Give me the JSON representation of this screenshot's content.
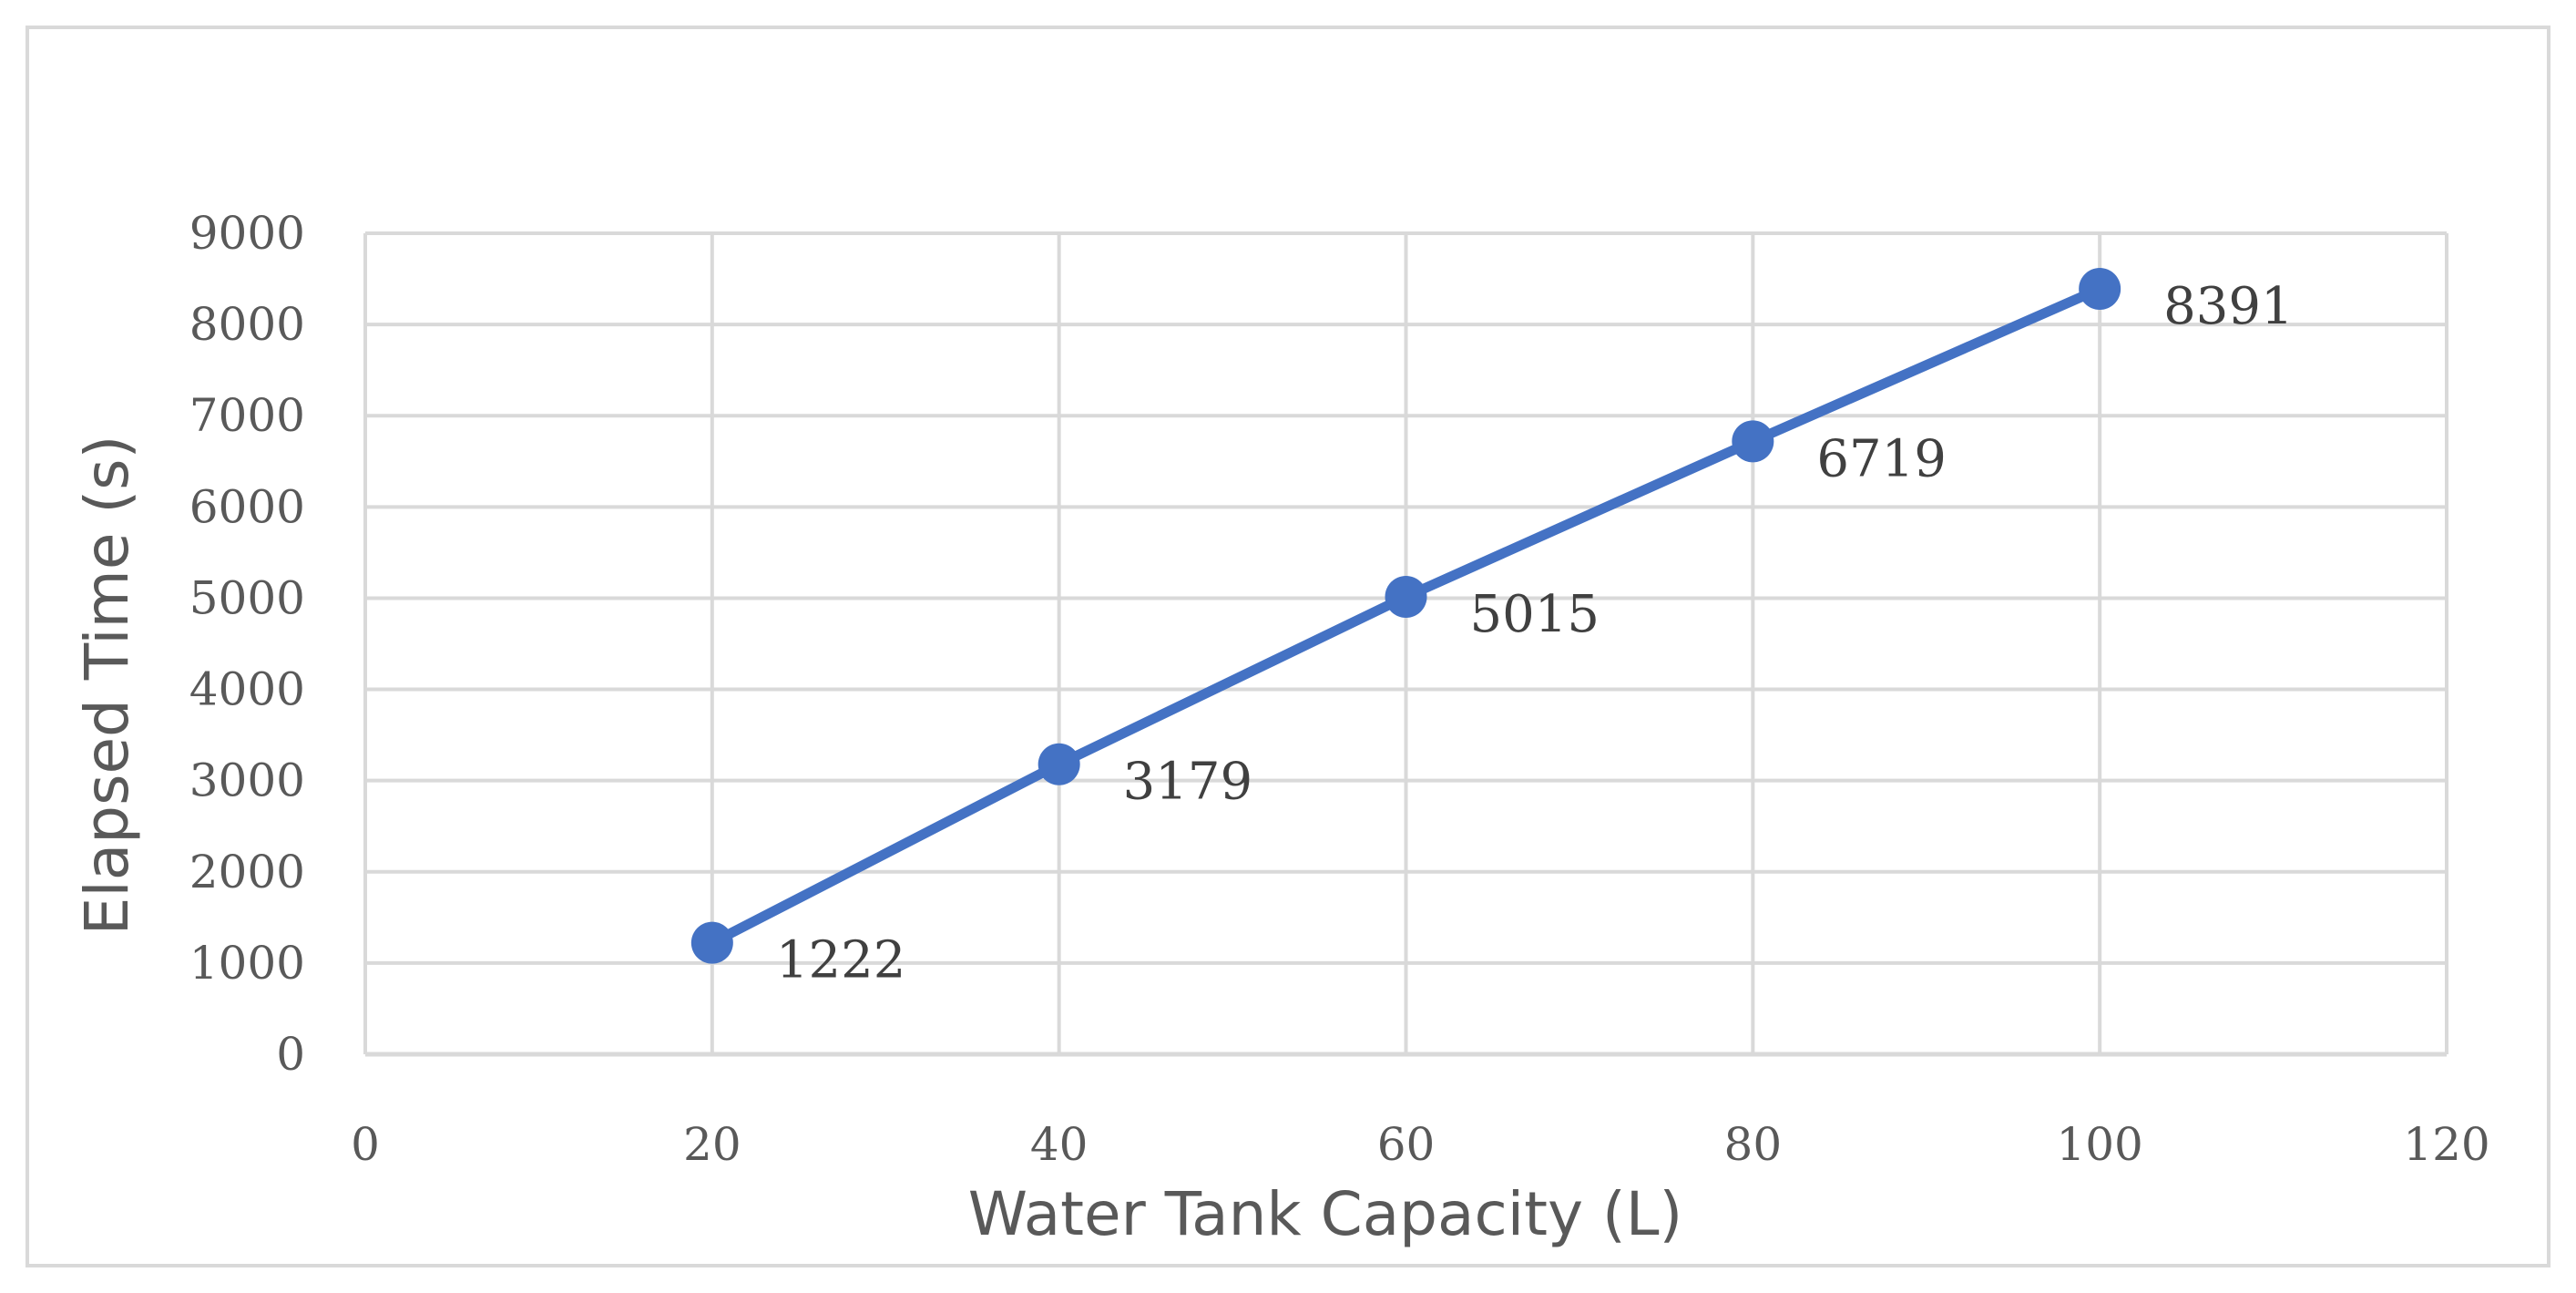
{
  "chart_data": {
    "type": "scatter",
    "mode": "lines+markers",
    "title": "",
    "xlabel": "Water Tank Capacity (L)",
    "ylabel": "Elapsed Time (s)",
    "xlim": [
      0,
      120
    ],
    "ylim": [
      0,
      9000
    ],
    "xticks": [
      0,
      20,
      40,
      60,
      80,
      100,
      120
    ],
    "yticks": [
      0,
      1000,
      2000,
      3000,
      4000,
      5000,
      6000,
      7000,
      8000,
      9000
    ],
    "grid": true,
    "legend": "none",
    "series": [
      {
        "x": [
          20,
          40,
          60,
          80,
          100
        ],
        "y": [
          1222,
          3179,
          5015,
          6719,
          8391
        ],
        "data_labels": [
          "1222",
          "3179",
          "5015",
          "6719",
          "8391"
        ],
        "color": "#4472C4"
      }
    ],
    "colors": {
      "series": "#4472C4",
      "grid": "#D9D9D9",
      "frame": "#D9D9D9",
      "text": "#595959"
    }
  }
}
